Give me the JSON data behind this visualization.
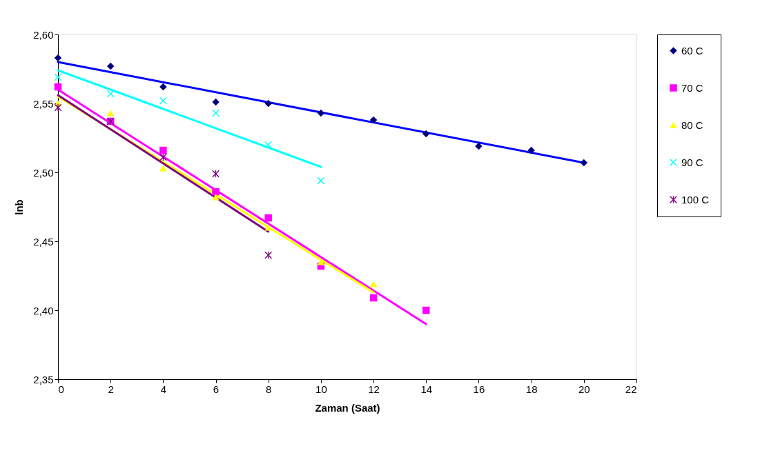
{
  "chart_data": {
    "type": "scatter",
    "xlabel": "Zaman (Saat)",
    "ylabel": "lnb",
    "xlim": [
      0,
      22
    ],
    "xticks": [
      0,
      2,
      4,
      6,
      8,
      10,
      12,
      14,
      16,
      18,
      20,
      22
    ],
    "ylim": [
      2.35,
      2.6
    ],
    "yticks": [
      {
        "value": 2.35,
        "label": "2,35"
      },
      {
        "value": 2.4,
        "label": "2,40"
      },
      {
        "value": 2.45,
        "label": "2,45"
      },
      {
        "value": 2.5,
        "label": "2,50"
      },
      {
        "value": 2.55,
        "label": "2,55"
      },
      {
        "value": 2.6,
        "label": "2,60"
      }
    ],
    "grid": false,
    "legend": "right",
    "series": [
      {
        "name": "60 C",
        "marker": "diamond",
        "color": "#000080",
        "x": [
          0,
          2,
          4,
          6,
          8,
          10,
          12,
          14,
          16,
          18,
          20
        ],
        "values": [
          2.583,
          2.577,
          2.562,
          2.551,
          2.55,
          2.543,
          2.538,
          2.528,
          2.519,
          2.516,
          2.507
        ]
      },
      {
        "name": "70 C",
        "marker": "square",
        "color": "#ff00ff",
        "x": [
          0,
          2,
          4,
          6,
          8,
          10,
          12,
          14
        ],
        "values": [
          2.562,
          2.537,
          2.516,
          2.486,
          2.467,
          2.432,
          2.409,
          2.4
        ]
      },
      {
        "name": "80 C",
        "marker": "triangle",
        "color": "#ffff00",
        "x": [
          0,
          2,
          4,
          6,
          8,
          10,
          12
        ],
        "values": [
          2.55,
          2.543,
          2.503,
          2.482,
          2.46,
          2.435,
          2.419
        ]
      },
      {
        "name": "90 C",
        "marker": "cross",
        "color": "#00ffff",
        "x": [
          0,
          2,
          4,
          6,
          8,
          10
        ],
        "values": [
          2.569,
          2.557,
          2.552,
          2.543,
          2.52,
          2.494
        ]
      },
      {
        "name": "100 C",
        "marker": "star",
        "color": "#800080",
        "x": [
          0,
          2,
          4,
          6,
          8
        ],
        "values": [
          2.547,
          2.537,
          2.511,
          2.499,
          2.44
        ]
      },
      {
        "type": "line",
        "color": "#0000ff",
        "x": [
          0,
          20
        ],
        "values": [
          2.58,
          2.507
        ]
      },
      {
        "type": "line",
        "color": "#ff00ff",
        "x": [
          0,
          14
        ],
        "values": [
          2.56,
          2.39
        ]
      },
      {
        "type": "line",
        "color": "#ffff00",
        "x": [
          0,
          12
        ],
        "values": [
          2.555,
          2.413
        ]
      },
      {
        "type": "line",
        "color": "#00ffff",
        "x": [
          0,
          10
        ],
        "values": [
          2.574,
          2.504
        ]
      },
      {
        "type": "line",
        "color": "#800080",
        "x": [
          0,
          8
        ],
        "values": [
          2.556,
          2.457
        ]
      }
    ]
  }
}
